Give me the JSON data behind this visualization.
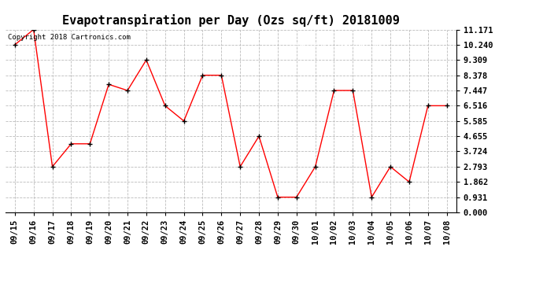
{
  "title": "Evapotranspiration per Day (Ozs sq/ft) 20181009",
  "copyright": "Copyright 2018 Cartronics.com",
  "x_labels": [
    "09/15",
    "09/16",
    "09/17",
    "09/18",
    "09/19",
    "09/20",
    "09/21",
    "09/22",
    "09/23",
    "09/24",
    "09/25",
    "09/26",
    "09/27",
    "09/28",
    "09/29",
    "09/30",
    "10/01",
    "10/02",
    "10/03",
    "10/04",
    "10/05",
    "10/06",
    "10/07",
    "10/08"
  ],
  "y_values": [
    10.24,
    11.171,
    2.793,
    4.19,
    4.19,
    7.82,
    7.447,
    9.309,
    6.516,
    5.585,
    8.378,
    8.378,
    2.793,
    4.655,
    0.931,
    0.931,
    2.793,
    7.447,
    7.447,
    0.931,
    2.793,
    1.862,
    6.516,
    6.516
  ],
  "y_ticks": [
    0.0,
    0.931,
    1.862,
    2.793,
    3.724,
    4.655,
    5.585,
    6.516,
    7.447,
    8.378,
    9.309,
    10.24,
    11.171
  ],
  "ylim": [
    0.0,
    11.171
  ],
  "line_color": "red",
  "marker": "+",
  "marker_color": "black",
  "bg_color": "white",
  "grid_color": "#bbbbbb",
  "legend_bg": "red",
  "legend_text_color": "white",
  "title_fontsize": 11,
  "tick_fontsize": 7.5,
  "copyright_fontsize": 6.5
}
